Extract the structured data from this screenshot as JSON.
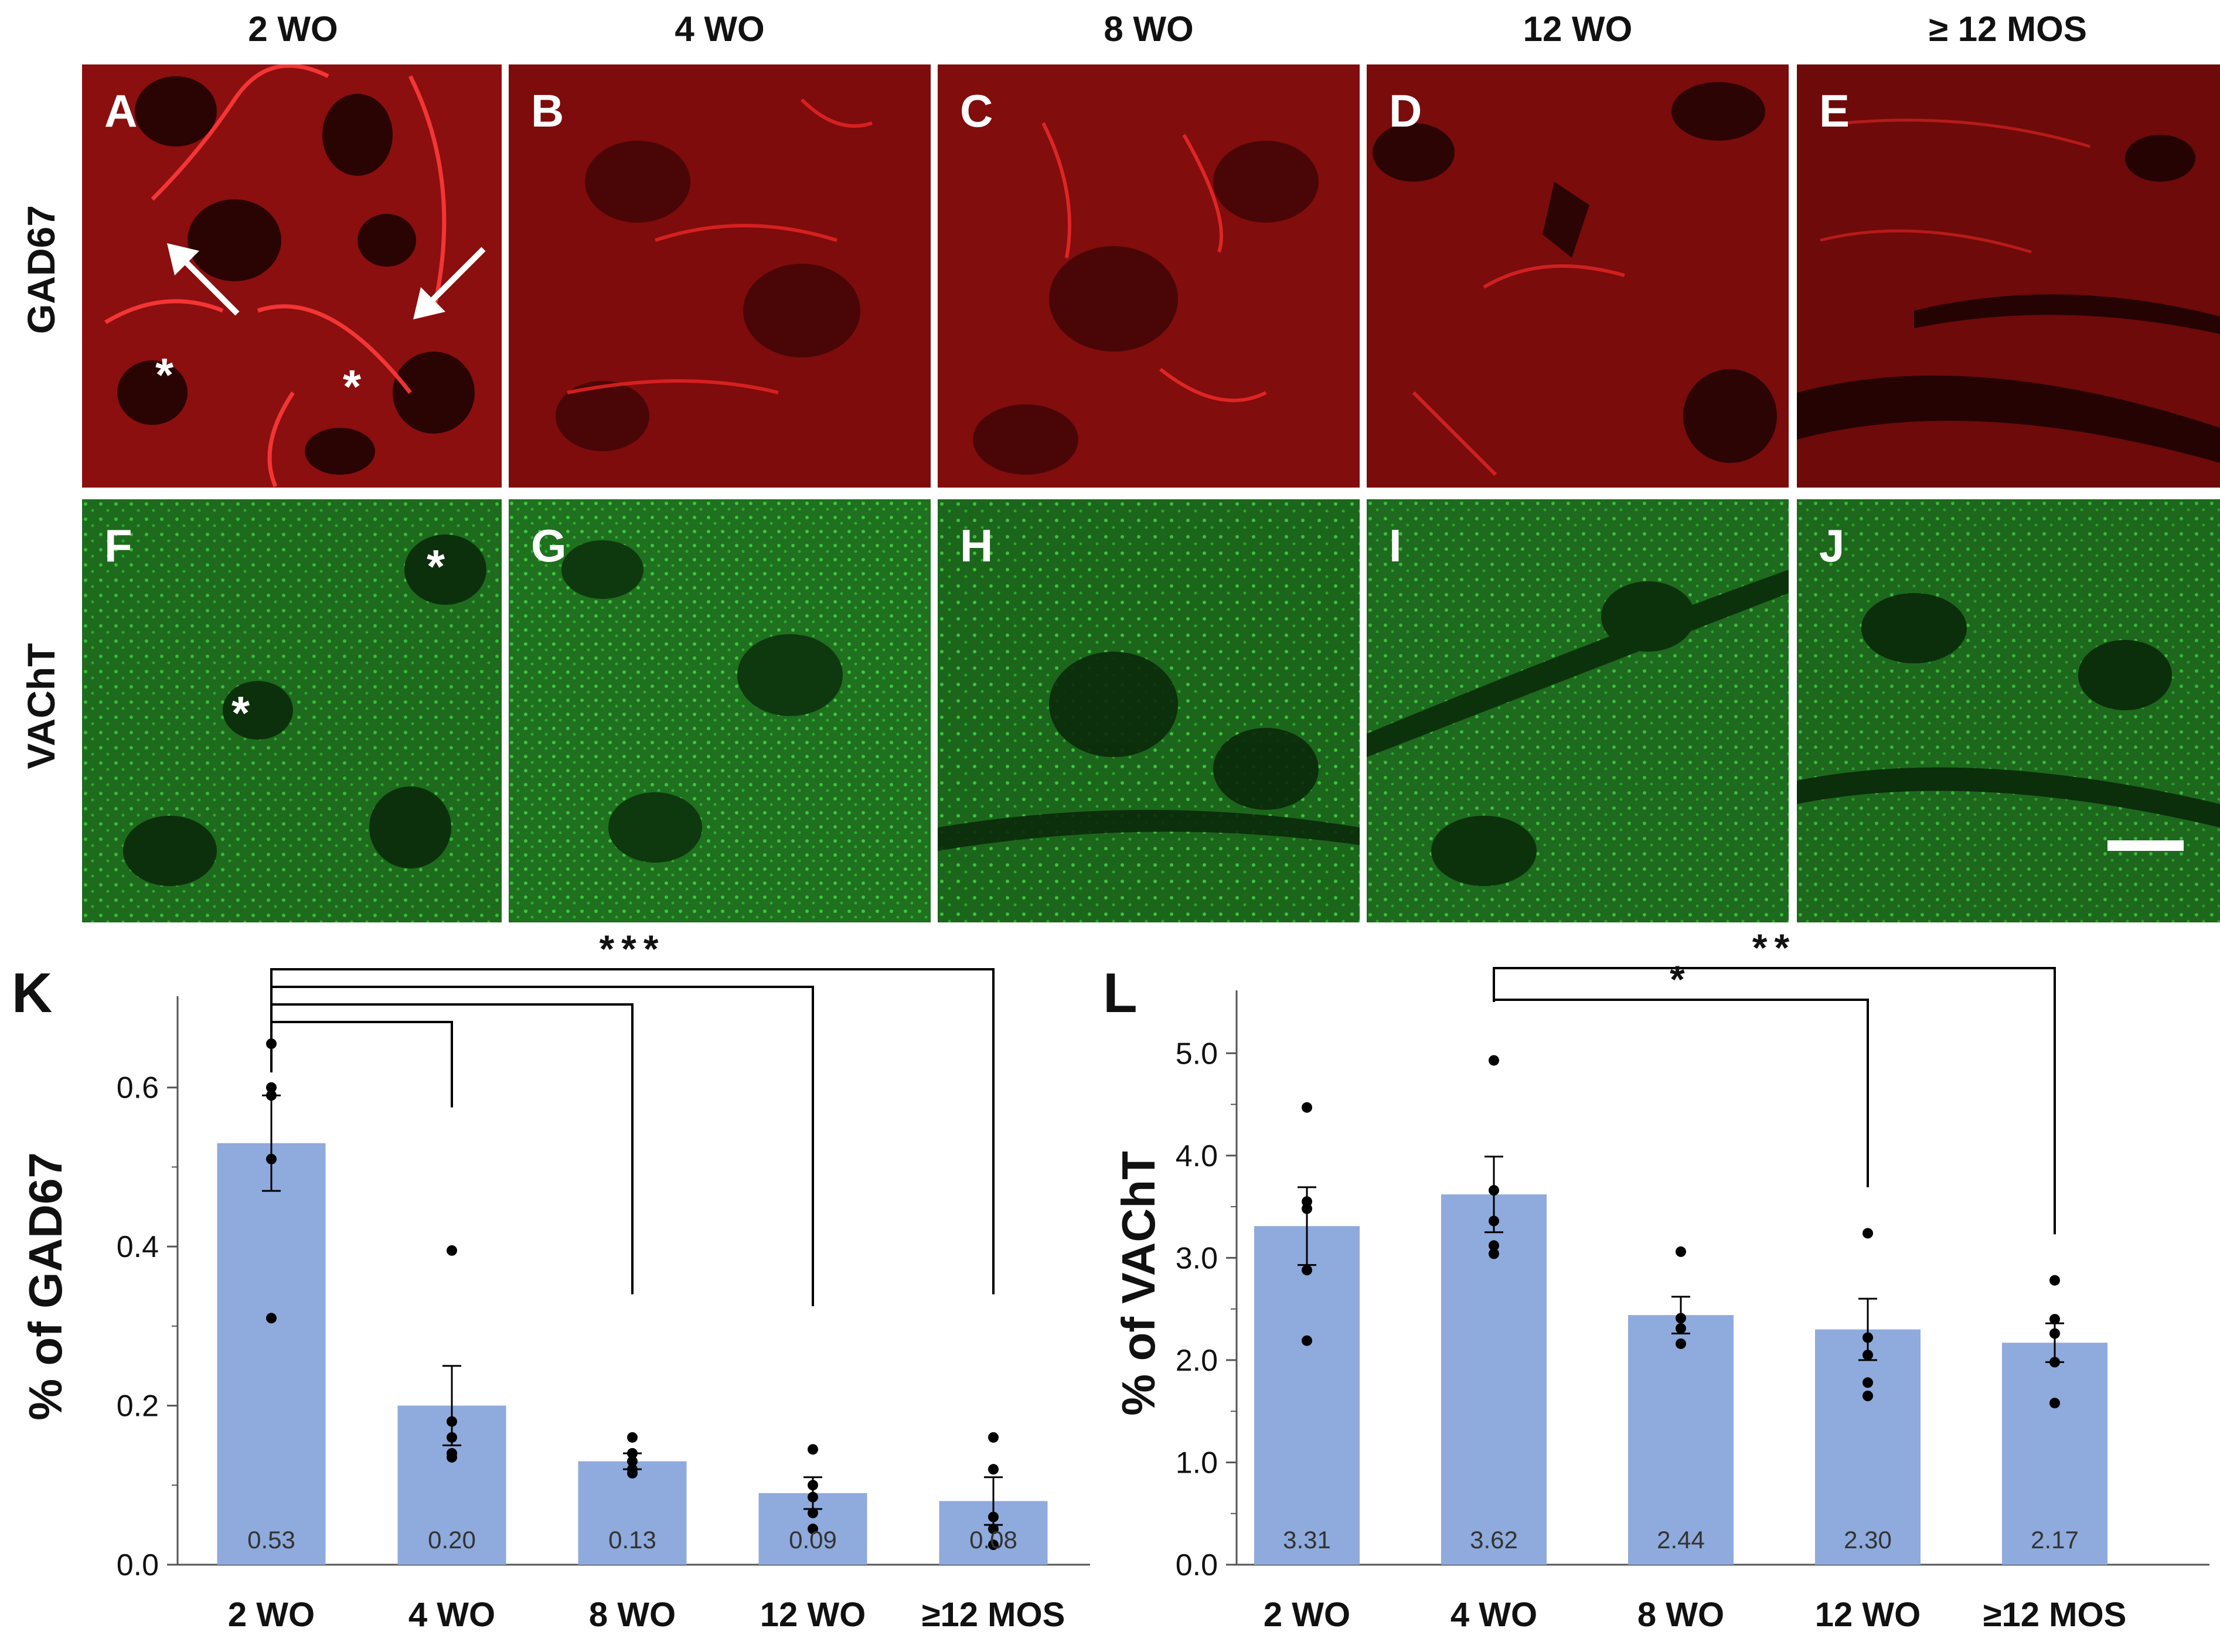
{
  "columns": [
    "2 WO",
    "4 WO",
    "8 WO",
    "12 WO",
    "≥ 12 MOS"
  ],
  "rows": [
    "GAD67",
    "VAChT"
  ],
  "panel_letters_top": [
    "A",
    "B",
    "C",
    "D",
    "E"
  ],
  "panel_letters_bottom": [
    "F",
    "G",
    "H",
    "I",
    "J"
  ],
  "asterisk": "*",
  "colors": {
    "gad67": "#8b0f0f",
    "vacht": "#1f7a1f",
    "bar": "#8faadc"
  },
  "chart_data": [
    {
      "type": "bar",
      "panel_label": "K",
      "categories": [
        "2 WO",
        "4 WO",
        "8 WO",
        "12 WO",
        "≥12 MOS"
      ],
      "values": [
        0.53,
        0.2,
        0.13,
        0.09,
        0.08
      ],
      "value_labels": [
        "0.53",
        "0.20",
        "0.13",
        "0.09",
        "0.08"
      ],
      "errors": [
        0.06,
        0.05,
        0.01,
        0.02,
        0.03
      ],
      "points": [
        [
          0.655,
          0.6,
          0.59,
          0.51,
          0.31
        ],
        [
          0.395,
          0.18,
          0.16,
          0.14,
          0.135
        ],
        [
          0.16,
          0.14,
          0.13,
          0.12,
          0.115
        ],
        [
          0.145,
          0.1,
          0.085,
          0.065,
          0.045
        ],
        [
          0.16,
          0.12,
          0.06,
          0.045,
          0.025
        ]
      ],
      "ylabel": "% of GAD67",
      "ylim": [
        0,
        0.7
      ],
      "yticks": [
        "0.0",
        "0.2",
        "0.4",
        "0.6"
      ],
      "significance": [
        {
          "from": "2 WO",
          "to": "4 WO"
        },
        {
          "from": "2 WO",
          "to": "8 WO"
        },
        {
          "from": "2 WO",
          "to": "12 WO"
        },
        {
          "from": "2 WO",
          "to": "≥12 MOS",
          "label": "***"
        }
      ],
      "grid": false
    },
    {
      "type": "bar",
      "panel_label": "L",
      "categories": [
        "2 WO",
        "4 WO",
        "8 WO",
        "12 WO",
        "≥12 MOS"
      ],
      "values": [
        3.31,
        3.62,
        2.44,
        2.3,
        2.17
      ],
      "value_labels": [
        "3.31",
        "3.62",
        "2.44",
        "2.30",
        "2.17"
      ],
      "errors": [
        0.38,
        0.37,
        0.18,
        0.3,
        0.19
      ],
      "points": [
        [
          4.47,
          3.55,
          3.48,
          2.88,
          2.19
        ],
        [
          4.93,
          3.66,
          3.36,
          3.12,
          3.04
        ],
        [
          3.06,
          2.41,
          2.31,
          2.16
        ],
        [
          3.24,
          2.22,
          2.05,
          1.78,
          1.65
        ],
        [
          2.78,
          2.4,
          2.26,
          1.98,
          1.58
        ]
      ],
      "ylabel": "% of VAChT",
      "ylim": [
        0,
        5.5
      ],
      "yticks": [
        "0.0",
        "1.0",
        "2.0",
        "3.0",
        "4.0",
        "5.0"
      ],
      "significance": [
        {
          "from": "4 WO",
          "to": "12 WO",
          "label": "*"
        },
        {
          "from": "4 WO",
          "to": "≥12 MOS",
          "label": "**"
        }
      ],
      "grid": false
    }
  ]
}
